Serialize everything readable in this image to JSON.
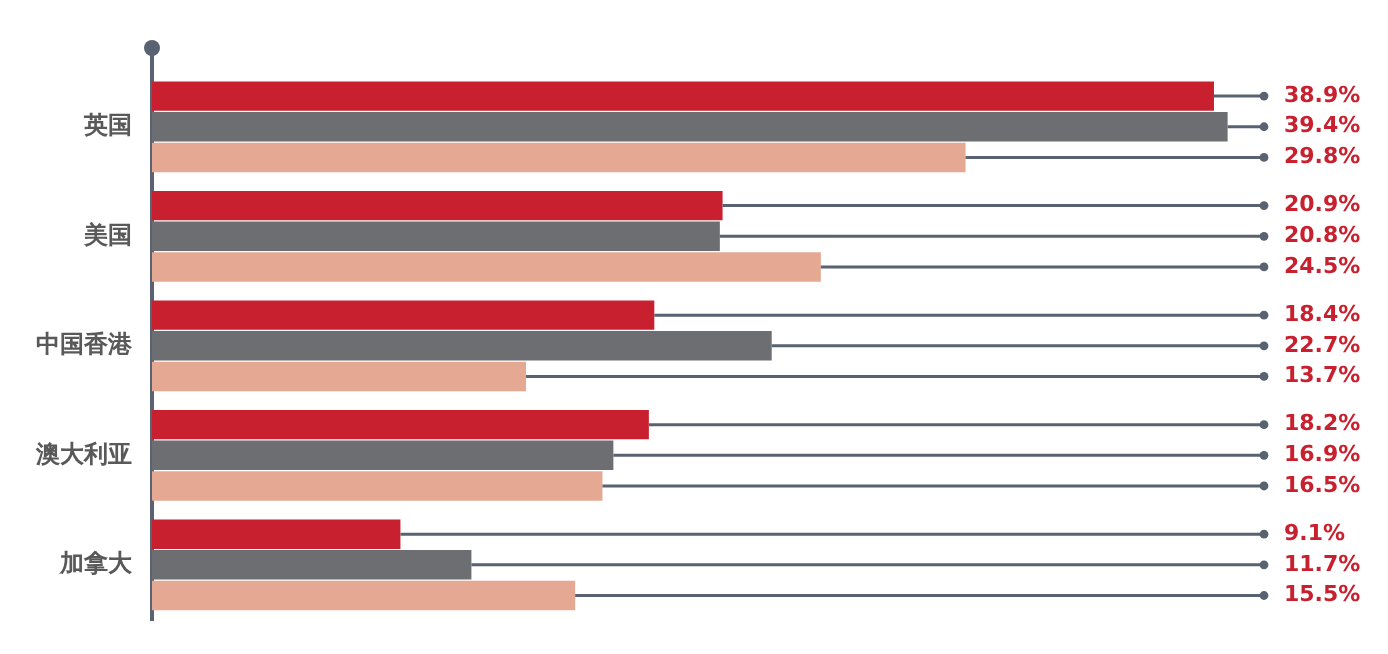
{
  "chart_data": {
    "type": "bar",
    "orientation": "horizontal",
    "categories": [
      "英国",
      "美国",
      "中国香港",
      "澳大利亚",
      "加拿大"
    ],
    "legend": false,
    "tick_labels": "y",
    "series": [
      {
        "color": "#c8202e",
        "values": [
          38.9,
          20.9,
          18.4,
          18.2,
          9.1
        ],
        "value_labels": [
          "38.9%",
          "20.9%",
          "18.4%",
          "18.2%",
          "9.1%"
        ]
      },
      {
        "color": "#6d6e71",
        "values": [
          39.4,
          20.8,
          22.7,
          16.9,
          11.7
        ],
        "value_labels": [
          "39.4%",
          "20.8%",
          "22.7%",
          "16.9%",
          "11.7%"
        ]
      },
      {
        "color": "#e5a993",
        "values": [
          29.8,
          24.5,
          13.7,
          16.5,
          15.5
        ],
        "value_labels": [
          "29.8%",
          "24.5%",
          "13.7%",
          "16.5%",
          "15.5%"
        ]
      }
    ]
  }
}
